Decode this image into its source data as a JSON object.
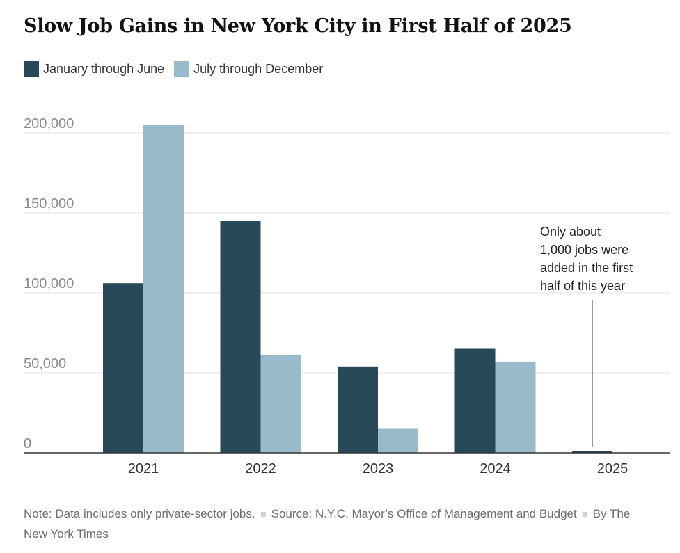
{
  "title": "Slow Job Gains in New York City in First Half of 2025",
  "chart_data": {
    "type": "bar",
    "title": "Slow Job Gains in New York City in First Half of 2025",
    "categories": [
      "2021",
      "2022",
      "2023",
      "2024",
      "2025"
    ],
    "series": [
      {
        "name": "January through June",
        "color": "#27495a",
        "values": [
          106000,
          145000,
          54000,
          65000,
          1000
        ]
      },
      {
        "name": "July through December",
        "color": "#98bacb",
        "values": [
          205000,
          61000,
          15000,
          57000,
          null
        ]
      }
    ],
    "ylim": [
      0,
      200000
    ],
    "yticks": [
      {
        "value": 0,
        "label": "0"
      },
      {
        "value": 50000,
        "label": "50,000"
      },
      {
        "value": 100000,
        "label": "100,000"
      },
      {
        "value": 150000,
        "label": "150,000"
      },
      {
        "value": 200000,
        "label": "200,000"
      }
    ],
    "grid": true,
    "legend": "top-left",
    "xlabel": "",
    "ylabel": "",
    "annotation": {
      "category": "2025",
      "lines": [
        "Only about",
        "1,000 jobs were",
        "added in the first",
        "half of this year"
      ]
    }
  },
  "footer": {
    "note": "Note: Data includes only private-sector jobs.",
    "source": "Source: N.Y.C. Mayor’s Office of Management and Budget",
    "byline": "By The New York Times"
  }
}
